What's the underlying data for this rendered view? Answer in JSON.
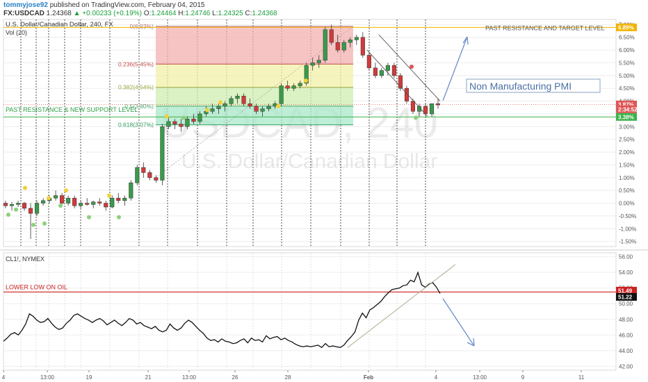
{
  "header": {
    "user": "tommyjose92",
    "published": "published on TradingView.com, February 04, 2015",
    "symbol": "FX:USDCAD",
    "price": "1.24368",
    "change": "+0.00233 (+0.19%)",
    "o_label": "O:",
    "o": "1.24464",
    "h_label": "H:",
    "h": "1.24746",
    "l_label": "L:",
    "l": "1.24325",
    "c_label": "C:",
    "c": "1.24368"
  },
  "chart_data": [
    {
      "type": "candlestick",
      "title": "U.S. Dollar/Canadian Dollar, 240, FX",
      "volume_label": "Vol (20)",
      "watermark_symbol": "USDCAD, 240",
      "watermark_name": "U.S. Dollar/Canadian Dollar",
      "y_unit": "percent change",
      "y_ticks": [
        "-1.50%",
        "-1.00%",
        "-0.50%",
        "0.00%",
        "0.50%",
        "1.00%",
        "1.50%",
        "2.00%",
        "2.50%",
        "3.00%",
        "3.50%",
        "4.00%",
        "4.50%",
        "5.00%",
        "5.50%",
        "6.00%",
        "6.50%",
        "7.00%"
      ],
      "ylim": [
        -1.7,
        7.2
      ],
      "x_ticks": [
        "4",
        "13:00",
        "19",
        "21",
        "13:00",
        "26",
        "28",
        "Feb",
        "4",
        "13:00",
        "9",
        "11"
      ],
      "fib_levels": [
        {
          "label": "0(6.93%)",
          "value": 6.93
        },
        {
          "label": "0.236(5.45%)",
          "value": 5.45
        },
        {
          "label": "0.382(4.54%)",
          "value": 4.54
        },
        {
          "label": "0.5(3.80%)",
          "value": 3.8
        },
        {
          "label": "0.618(3.07%)",
          "value": 3.07
        }
      ],
      "price_badges": [
        {
          "label": "6.89%",
          "value": 6.89,
          "color": "#f0b400"
        },
        {
          "label": "3.87%",
          "value": 3.87,
          "color": "#e05555"
        },
        {
          "label": "2:34:52",
          "value": 3.68,
          "color": "#e05555"
        },
        {
          "label": "3.38%",
          "value": 3.38,
          "color": "#3cb24a"
        }
      ],
      "annotations": [
        {
          "text": "PAST RESISTANCE AND TARGET LEVEL",
          "color": "#555555"
        },
        {
          "text": "Non Manufacturing PMI",
          "color": "#4a6fa5"
        },
        {
          "text": "PAST RESISTANCE & NEW SUPPORT LEVEL",
          "color": "#2e9e44"
        }
      ],
      "candles": [
        [
          0.0,
          0.1,
          -0.2,
          -0.1
        ],
        [
          -0.1,
          0.05,
          -0.3,
          -0.05
        ],
        [
          -0.05,
          0.1,
          -0.15,
          0.0
        ],
        [
          0.0,
          0.05,
          -0.3,
          -0.2
        ],
        [
          -0.2,
          0.0,
          -1.4,
          -0.4
        ],
        [
          -0.4,
          0.1,
          -0.5,
          0.0
        ],
        [
          0.0,
          0.2,
          -0.1,
          0.1
        ],
        [
          0.1,
          0.3,
          0.0,
          0.2
        ],
        [
          0.2,
          0.5,
          0.1,
          0.3
        ],
        [
          0.3,
          0.4,
          -0.1,
          0.0
        ],
        [
          0.0,
          0.3,
          -0.1,
          0.2
        ],
        [
          0.2,
          0.3,
          -0.2,
          -0.1
        ],
        [
          -0.1,
          0.1,
          -0.2,
          0.0
        ],
        [
          0.0,
          0.2,
          -0.1,
          -0.05
        ],
        [
          -0.05,
          0.1,
          -0.2,
          0.05
        ],
        [
          0.05,
          0.2,
          -0.1,
          0.0
        ],
        [
          0.0,
          0.1,
          -0.3,
          -0.15
        ],
        [
          -0.15,
          0.3,
          -0.2,
          0.2
        ],
        [
          0.2,
          0.4,
          0.0,
          0.1
        ],
        [
          0.1,
          0.3,
          -0.1,
          0.2
        ],
        [
          0.2,
          0.9,
          0.1,
          0.8
        ],
        [
          0.8,
          1.5,
          0.7,
          1.4
        ],
        [
          1.4,
          1.6,
          1.0,
          1.2
        ],
        [
          1.2,
          1.3,
          0.9,
          1.0
        ],
        [
          1.0,
          1.1,
          0.8,
          0.9
        ],
        [
          0.9,
          3.1,
          0.7,
          3.0
        ],
        [
          3.0,
          3.4,
          2.9,
          3.2
        ],
        [
          3.2,
          3.3,
          2.9,
          3.1
        ],
        [
          3.1,
          3.3,
          2.8,
          3.0
        ],
        [
          3.0,
          3.4,
          2.9,
          3.3
        ],
        [
          3.3,
          3.5,
          3.1,
          3.2
        ],
        [
          3.2,
          3.6,
          3.1,
          3.5
        ],
        [
          3.5,
          3.8,
          3.4,
          3.6
        ],
        [
          3.6,
          3.9,
          3.5,
          3.7
        ],
        [
          3.7,
          3.9,
          3.5,
          3.8
        ],
        [
          3.8,
          4.0,
          3.6,
          3.9
        ],
        [
          3.9,
          4.2,
          3.8,
          4.1
        ],
        [
          4.1,
          4.3,
          3.9,
          4.2
        ],
        [
          4.2,
          4.3,
          3.8,
          3.9
        ],
        [
          3.9,
          4.1,
          3.7,
          3.8
        ],
        [
          3.8,
          3.9,
          3.5,
          3.6
        ],
        [
          3.6,
          3.8,
          3.4,
          3.7
        ],
        [
          3.7,
          3.9,
          3.6,
          3.8
        ],
        [
          3.8,
          4.0,
          3.7,
          3.9
        ],
        [
          3.9,
          4.7,
          3.8,
          4.6
        ],
        [
          4.6,
          4.8,
          4.4,
          4.5
        ],
        [
          4.5,
          4.7,
          4.4,
          4.6
        ],
        [
          4.6,
          4.8,
          4.5,
          4.7
        ],
        [
          4.7,
          5.5,
          4.6,
          5.4
        ],
        [
          5.4,
          5.7,
          5.2,
          5.5
        ],
        [
          5.5,
          5.8,
          5.3,
          5.6
        ],
        [
          5.6,
          6.9,
          5.5,
          6.8
        ],
        [
          6.8,
          7.0,
          6.2,
          6.3
        ],
        [
          6.3,
          6.6,
          5.9,
          6.0
        ],
        [
          6.0,
          6.4,
          5.9,
          6.3
        ],
        [
          6.3,
          6.5,
          6.1,
          6.4
        ],
        [
          6.4,
          6.6,
          6.2,
          6.5
        ],
        [
          6.5,
          6.7,
          5.7,
          5.8
        ],
        [
          5.8,
          5.9,
          5.2,
          5.3
        ],
        [
          5.3,
          5.5,
          4.9,
          5.0
        ],
        [
          5.0,
          5.3,
          4.9,
          5.2
        ],
        [
          5.2,
          5.5,
          5.0,
          5.4
        ],
        [
          5.4,
          5.5,
          4.9,
          5.0
        ],
        [
          5.0,
          5.1,
          4.4,
          4.5
        ],
        [
          4.5,
          4.6,
          3.9,
          4.0
        ],
        [
          4.0,
          4.1,
          3.5,
          3.6
        ],
        [
          3.6,
          3.9,
          3.4,
          3.8
        ],
        [
          3.8,
          3.9,
          3.4,
          3.5
        ],
        [
          3.5,
          3.9,
          3.4,
          3.9
        ],
        [
          3.9,
          4.1,
          3.7,
          3.85
        ]
      ]
    },
    {
      "type": "line",
      "title": "CL1!, NYMEX",
      "y_ticks": [
        "42.00",
        "44.00",
        "46.00",
        "48.00",
        "50.00",
        "52.00",
        "54.00",
        "56.00"
      ],
      "ylim": [
        41.5,
        56.5
      ],
      "price_badges": [
        {
          "label": "51.49",
          "value": 51.49,
          "color": "#cc2222"
        },
        {
          "label": "51.22",
          "value": 51.22,
          "color": "#111111"
        }
      ],
      "annotations": [
        {
          "text": "LOWER LOW ON OIL",
          "color": "#cc2222"
        }
      ],
      "values": [
        45.2,
        45.6,
        46.1,
        46.3,
        46.0,
        46.6,
        47.4,
        48.7,
        48.4,
        47.9,
        47.6,
        47.7,
        48.1,
        47.5,
        47.0,
        46.7,
        46.9,
        47.5,
        47.9,
        48.5,
        48.7,
        48.4,
        48.1,
        47.9,
        47.6,
        47.9,
        48.1,
        47.8,
        47.3,
        47.6,
        47.9,
        47.5,
        47.2,
        47.6,
        48.1,
        47.9,
        47.4,
        47.6,
        47.2,
        47.0,
        46.8,
        47.1,
        46.6,
        46.4,
        46.6,
        47.4,
        46.9,
        46.6,
        46.9,
        47.5,
        47.9,
        47.6,
        47.1,
        46.6,
        46.2,
        45.6,
        45.3,
        45.4,
        45.1,
        45.5,
        45.2,
        45.1,
        44.9,
        45.0,
        45.3,
        45.5,
        45.0,
        45.6,
        45.3,
        45.4,
        45.1,
        45.9,
        45.5,
        45.7,
        45.8,
        45.4,
        45.6,
        45.3,
        45.1,
        44.8,
        44.6,
        44.5,
        44.6,
        44.5,
        44.6,
        44.7,
        44.4,
        44.9,
        44.5,
        44.6,
        44.5,
        44.4,
        44.7,
        45.3,
        45.8,
        46.4,
        47.9,
        48.8,
        48.2,
        49.2,
        49.5,
        49.9,
        50.3,
        50.9,
        51.4,
        51.8,
        51.9,
        52.0,
        52.3,
        52.4,
        53.0,
        52.8,
        54.0,
        52.4,
        52.1,
        52.5,
        52.7,
        52.1,
        51.3
      ]
    }
  ]
}
